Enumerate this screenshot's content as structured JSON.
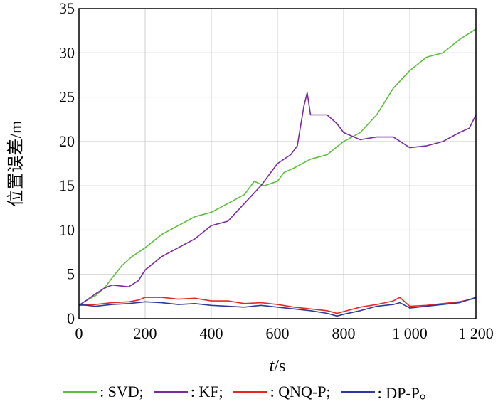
{
  "chart_data": {
    "type": "line",
    "xlabel_italic": "t",
    "xlabel_unit": "/s",
    "ylabel": "位置误差/m",
    "xlim": [
      0,
      1200
    ],
    "ylim": [
      0,
      35
    ],
    "xticks": [
      0,
      200,
      400,
      600,
      800,
      1000,
      1200
    ],
    "xtick_labels": [
      "0",
      "200",
      "400",
      "600",
      "800",
      "1 000",
      "1 200"
    ],
    "yticks": [
      0,
      5,
      10,
      15,
      20,
      25,
      30,
      35
    ],
    "ytick_labels": [
      "0",
      "5",
      "10",
      "15",
      "20",
      "25",
      "30",
      "35"
    ],
    "grid": true,
    "legend_position": "bottom",
    "series": [
      {
        "name": "SVD",
        "legend_label": "SVD;",
        "color": "#5cbf3c",
        "x": [
          0,
          20,
          50,
          80,
          100,
          130,
          160,
          200,
          250,
          300,
          350,
          400,
          450,
          500,
          530,
          560,
          600,
          620,
          650,
          700,
          750,
          800,
          850,
          900,
          950,
          1000,
          1050,
          1100,
          1150,
          1200
        ],
        "y": [
          1.5,
          2.0,
          2.6,
          3.6,
          4.6,
          6.0,
          7.0,
          8.0,
          9.5,
          10.5,
          11.5,
          12.0,
          13.0,
          14.0,
          15.5,
          15.0,
          15.5,
          16.5,
          17.0,
          18.0,
          18.5,
          20.0,
          21.0,
          23.0,
          26.0,
          28.0,
          29.5,
          30.0,
          31.5,
          32.7
        ]
      },
      {
        "name": "KF",
        "legend_label": "KF;",
        "color": "#7b2aa0",
        "x": [
          0,
          20,
          50,
          80,
          100,
          150,
          180,
          200,
          250,
          300,
          350,
          400,
          450,
          500,
          550,
          600,
          640,
          660,
          680,
          690,
          700,
          750,
          780,
          800,
          850,
          900,
          950,
          1000,
          1050,
          1100,
          1150,
          1180,
          1200
        ],
        "y": [
          1.5,
          2.0,
          2.8,
          3.5,
          3.8,
          3.6,
          4.3,
          5.5,
          7.0,
          8.0,
          9.0,
          10.5,
          11.0,
          13.0,
          15.0,
          17.5,
          18.5,
          19.5,
          24.0,
          25.5,
          23.0,
          23.0,
          22.0,
          21.0,
          20.2,
          20.5,
          20.5,
          19.3,
          19.5,
          20.0,
          21.0,
          21.5,
          23.0
        ]
      },
      {
        "name": "QNQ-P",
        "legend_label": "QNQ-P;",
        "color": "#e8281e",
        "x": [
          0,
          50,
          100,
          150,
          180,
          200,
          250,
          300,
          350,
          400,
          450,
          500,
          550,
          600,
          650,
          700,
          750,
          780,
          800,
          850,
          900,
          950,
          970,
          1000,
          1050,
          1100,
          1150,
          1200
        ],
        "y": [
          1.5,
          1.6,
          1.8,
          1.9,
          2.1,
          2.4,
          2.4,
          2.2,
          2.3,
          2.0,
          2.0,
          1.7,
          1.8,
          1.6,
          1.3,
          1.1,
          0.9,
          0.6,
          0.8,
          1.3,
          1.6,
          2.0,
          2.4,
          1.4,
          1.5,
          1.7,
          1.9,
          2.3
        ]
      },
      {
        "name": "DP-P",
        "legend_label": "DP-P。",
        "color": "#2a3a9e",
        "x": [
          0,
          50,
          100,
          150,
          200,
          250,
          300,
          350,
          400,
          450,
          500,
          550,
          600,
          650,
          700,
          750,
          780,
          800,
          850,
          900,
          950,
          970,
          1000,
          1050,
          1100,
          1150,
          1200
        ],
        "y": [
          1.6,
          1.4,
          1.6,
          1.7,
          1.9,
          1.8,
          1.6,
          1.7,
          1.5,
          1.4,
          1.3,
          1.5,
          1.3,
          1.1,
          0.9,
          0.6,
          0.3,
          0.5,
          0.9,
          1.4,
          1.6,
          1.8,
          1.2,
          1.4,
          1.6,
          1.8,
          2.4
        ]
      }
    ]
  }
}
